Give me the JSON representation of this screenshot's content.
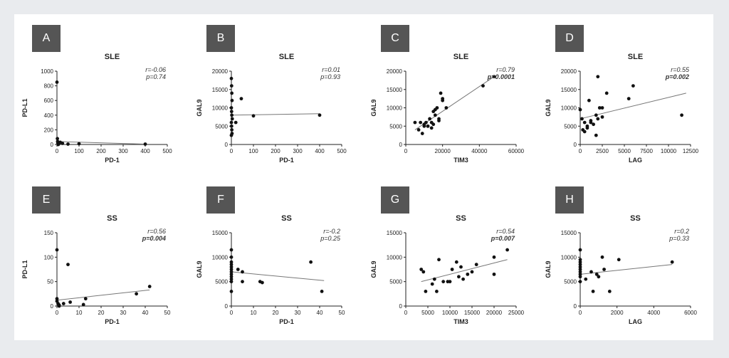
{
  "chart_data": [
    {
      "letter": "A",
      "type": "scatter",
      "title": "SLE",
      "xlabel": "PD-1",
      "ylabel": "PD-L1",
      "xlim": [
        0,
        500
      ],
      "ylim": [
        0,
        1000
      ],
      "xticks": [
        0,
        100,
        200,
        300,
        400,
        500
      ],
      "yticks": [
        0,
        200,
        400,
        600,
        800,
        1000
      ],
      "r": "r=-0.06",
      "p": "p=0.74",
      "p_bold": false,
      "x": [
        0,
        2,
        4,
        8,
        15,
        25,
        50,
        100,
        400,
        3,
        6
      ],
      "y": [
        850,
        80,
        20,
        10,
        30,
        15,
        5,
        10,
        5,
        40,
        0
      ],
      "fit": [
        [
          0,
          40
        ],
        [
          400,
          5
        ]
      ]
    },
    {
      "letter": "B",
      "type": "scatter",
      "title": "SLE",
      "xlabel": "PD-1",
      "ylabel": "GAL9",
      "xlim": [
        0,
        500
      ],
      "ylim": [
        0,
        20000
      ],
      "xticks": [
        0,
        100,
        200,
        300,
        400,
        500
      ],
      "yticks": [
        0,
        5000,
        10000,
        15000,
        20000
      ],
      "r": "r=0.01",
      "p": "p=0.93",
      "p_bold": false,
      "x": [
        0,
        1,
        2,
        3,
        0,
        1,
        2,
        4,
        0,
        1,
        3,
        20,
        45,
        100,
        400,
        2,
        0
      ],
      "y": [
        18000,
        16000,
        14000,
        12000,
        10000,
        9000,
        8000,
        7000,
        6000,
        5000,
        3000,
        6000,
        12500,
        7800,
        8000,
        4000,
        2500
      ],
      "fit": [
        [
          0,
          8000
        ],
        [
          400,
          8400
        ]
      ]
    },
    {
      "letter": "C",
      "type": "scatter",
      "title": "SLE",
      "xlabel": "TIM3",
      "ylabel": "GAL9",
      "xlim": [
        0,
        60000
      ],
      "ylim": [
        0,
        20000
      ],
      "xticks": [
        0,
        20000,
        40000,
        60000
      ],
      "yticks": [
        0,
        5000,
        10000,
        15000,
        20000
      ],
      "r": "r=0.79",
      "p": "p=0.0001",
      "p_bold": true,
      "x": [
        5000,
        8000,
        7000,
        9000,
        10000,
        11000,
        12000,
        13000,
        14000,
        15000,
        16000,
        17000,
        18000,
        19000,
        20000,
        22000,
        14000,
        15000,
        12000,
        16000,
        18000,
        20000,
        42000,
        48000,
        10000
      ],
      "y": [
        6000,
        6000,
        4000,
        3000,
        5000,
        6000,
        5000,
        7000,
        6000,
        9000,
        8000,
        10000,
        7000,
        14000,
        12000,
        10000,
        4500,
        5500,
        5000,
        9500,
        6500,
        12500,
        16000,
        18500,
        5500
      ],
      "fit": [
        [
          5000,
          4000
        ],
        [
          48000,
          18500
        ]
      ]
    },
    {
      "letter": "D",
      "type": "scatter",
      "title": "SLE",
      "xlabel": "LAG",
      "ylabel": "GAL9",
      "xlim": [
        0,
        12500
      ],
      "ylim": [
        0,
        20000
      ],
      "xticks": [
        0,
        2500,
        5000,
        7500,
        10000,
        12500
      ],
      "yticks": [
        0,
        5000,
        10000,
        15000,
        20000
      ],
      "r": "r=0.55",
      "p": "p=0.002",
      "p_bold": true,
      "x": [
        0,
        200,
        300,
        500,
        800,
        1000,
        1200,
        1500,
        1800,
        2000,
        2200,
        2500,
        3000,
        6000,
        11500,
        1800,
        2000,
        800,
        1200,
        2500,
        5500,
        500
      ],
      "y": [
        9500,
        7000,
        4000,
        6000,
        4500,
        12000,
        6000,
        5500,
        8000,
        18500,
        10000,
        7500,
        14000,
        16000,
        8000,
        2500,
        7000,
        5000,
        6500,
        10000,
        12500,
        3500
      ],
      "fit": [
        [
          0,
          7000
        ],
        [
          12000,
          14000
        ]
      ]
    },
    {
      "letter": "E",
      "type": "scatter",
      "title": "SS",
      "xlabel": "PD-1",
      "ylabel": "PD-L1",
      "xlim": [
        0,
        50
      ],
      "ylim": [
        0,
        150
      ],
      "xticks": [
        0,
        10,
        20,
        30,
        40,
        50
      ],
      "yticks": [
        0,
        50,
        100,
        150
      ],
      "r": "r=0.56",
      "p": "p=0.004",
      "p_bold": true,
      "x": [
        0,
        0,
        0,
        0.5,
        1,
        1,
        3,
        5,
        6,
        12,
        13,
        36,
        42
      ],
      "y": [
        115,
        15,
        10,
        5,
        2,
        0,
        5,
        85,
        8,
        3,
        15,
        25,
        40
      ],
      "fit": [
        [
          0,
          12
        ],
        [
          42,
          33
        ]
      ]
    },
    {
      "letter": "F",
      "type": "scatter",
      "title": "SS",
      "xlabel": "PD-1",
      "ylabel": "GAL9",
      "xlim": [
        0,
        50
      ],
      "ylim": [
        0,
        15000
      ],
      "xticks": [
        0,
        10,
        20,
        30,
        40,
        50
      ],
      "yticks": [
        0,
        5000,
        10000,
        15000
      ],
      "r": "r=-0.2",
      "p": "p=0.25",
      "p_bold": false,
      "x": [
        0,
        0,
        0,
        0,
        0,
        0,
        0,
        0,
        0,
        0,
        0,
        0,
        3,
        5,
        5,
        13,
        14,
        36,
        41
      ],
      "y": [
        11500,
        10000,
        9000,
        8500,
        8000,
        7500,
        7000,
        6500,
        6000,
        5500,
        5000,
        3000,
        7500,
        7000,
        5000,
        5000,
        4800,
        9000,
        3000
      ],
      "fit": [
        [
          0,
          7000
        ],
        [
          42,
          5200
        ]
      ]
    },
    {
      "letter": "G",
      "type": "scatter",
      "title": "SS",
      "xlabel": "TIM3",
      "ylabel": "GAL9",
      "xlim": [
        0,
        25000
      ],
      "ylim": [
        0,
        15000
      ],
      "xticks": [
        0,
        5000,
        10000,
        15000,
        20000,
        25000
      ],
      "yticks": [
        0,
        5000,
        10000,
        15000
      ],
      "r": "r=0.54",
      "p": "p=0.007",
      "p_bold": true,
      "x": [
        3500,
        4000,
        4500,
        6000,
        6500,
        7000,
        7500,
        8500,
        9500,
        10000,
        10500,
        11500,
        12000,
        12500,
        13000,
        14000,
        15000,
        16000,
        20000,
        20000,
        23000
      ],
      "y": [
        7500,
        7000,
        3000,
        4500,
        5500,
        3000,
        9500,
        5000,
        5000,
        5000,
        7500,
        9000,
        6000,
        8000,
        5500,
        6500,
        7000,
        8500,
        10000,
        6500,
        11500
      ],
      "fit": [
        [
          3500,
          5000
        ],
        [
          23000,
          9500
        ]
      ]
    },
    {
      "letter": "H",
      "type": "scatter",
      "title": "SS",
      "xlabel": "LAG",
      "ylabel": "GAL9",
      "xlim": [
        0,
        6000
      ],
      "ylim": [
        0,
        15000
      ],
      "xticks": [
        0,
        2000,
        4000,
        6000
      ],
      "yticks": [
        0,
        5000,
        10000,
        15000
      ],
      "r": "r=0.2",
      "p": "p=0.33",
      "p_bold": false,
      "x": [
        0,
        0,
        0,
        0,
        0,
        0,
        0,
        0,
        0,
        0,
        300,
        600,
        700,
        900,
        1000,
        1200,
        1300,
        1600,
        2100,
        5000
      ],
      "y": [
        11500,
        9500,
        9000,
        8500,
        8000,
        7500,
        7000,
        6500,
        6000,
        5000,
        5500,
        7000,
        3000,
        6500,
        6000,
        10000,
        7500,
        3000,
        9500,
        9000
      ],
      "fit": [
        [
          0,
          6500
        ],
        [
          5000,
          8500
        ]
      ]
    }
  ]
}
